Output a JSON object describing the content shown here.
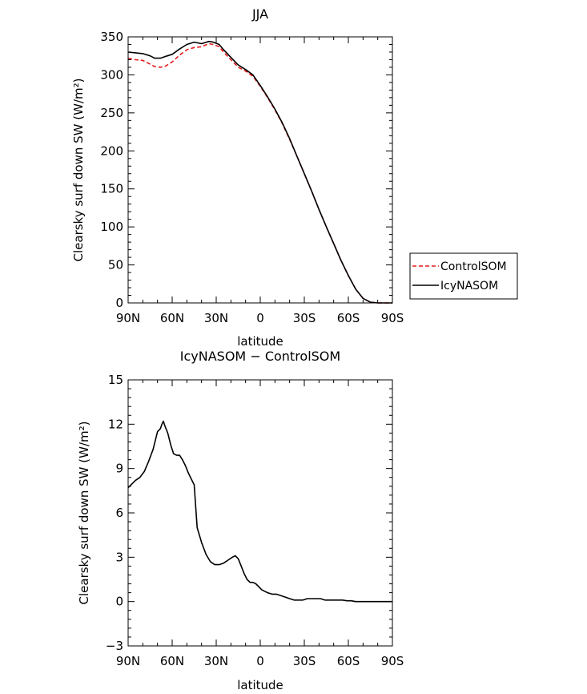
{
  "chart_data": [
    {
      "type": "line",
      "title": "JJA",
      "xlabel": "latitude",
      "ylabel": "Clearsky surf down SW (W/m²)",
      "xlim": [
        90,
        -90
      ],
      "ylim": [
        0,
        350
      ],
      "xticks": [
        {
          "value": 90,
          "label": "90N"
        },
        {
          "value": 60,
          "label": "60N"
        },
        {
          "value": 30,
          "label": "30N"
        },
        {
          "value": 0,
          "label": "0"
        },
        {
          "value": -30,
          "label": "30S"
        },
        {
          "value": -60,
          "label": "60S"
        },
        {
          "value": -90,
          "label": "90S"
        }
      ],
      "yticks": [
        0,
        50,
        100,
        150,
        200,
        250,
        300,
        350
      ],
      "legend": "right",
      "series": [
        {
          "name": "ControlSOM",
          "color": "#e41a1c",
          "dash": "dashed",
          "x": [
            90,
            85,
            80,
            75,
            72,
            68,
            65,
            60,
            55,
            50,
            45,
            40,
            35,
            32,
            28,
            25,
            20,
            15,
            10,
            5,
            0,
            -5,
            -10,
            -15,
            -20,
            -25,
            -30,
            -35,
            -40,
            -45,
            -50,
            -55,
            -60,
            -65,
            -70,
            -75,
            -80,
            -85,
            -90
          ],
          "y": [
            322,
            320,
            319,
            314,
            311,
            310,
            311,
            317,
            326,
            333,
            336,
            337,
            341,
            340,
            337,
            330,
            320,
            310,
            305,
            298,
            285,
            270,
            254,
            236,
            215,
            193,
            170,
            147,
            123,
            100,
            78,
            56,
            36,
            18,
            6,
            1,
            0,
            0,
            0
          ]
        },
        {
          "name": "IcyNASOM",
          "color": "#000000",
          "dash": "solid",
          "x": [
            90,
            85,
            80,
            75,
            72,
            68,
            65,
            60,
            55,
            50,
            45,
            40,
            35,
            32,
            28,
            25,
            20,
            15,
            10,
            5,
            0,
            -5,
            -10,
            -15,
            -20,
            -25,
            -30,
            -35,
            -40,
            -45,
            -50,
            -55,
            -60,
            -65,
            -70,
            -75,
            -80,
            -85,
            -90
          ],
          "y": [
            330,
            329,
            328,
            325,
            322,
            322,
            324,
            327,
            334,
            340,
            343,
            341,
            344,
            343,
            340,
            333,
            323,
            313,
            307,
            300,
            286,
            271,
            255,
            237,
            216,
            193,
            170,
            147,
            123,
            100,
            78,
            56,
            36,
            18,
            6,
            1,
            0,
            0,
            0
          ]
        }
      ]
    },
    {
      "type": "line",
      "title": "IcyNASOM − ControlSOM",
      "xlabel": "latitude",
      "ylabel": "Clearsky surf down SW (W/m²)",
      "xlim": [
        90,
        -90
      ],
      "ylim": [
        -3,
        15
      ],
      "xticks": [
        {
          "value": 90,
          "label": "90N"
        },
        {
          "value": 60,
          "label": "60N"
        },
        {
          "value": 30,
          "label": "30N"
        },
        {
          "value": 0,
          "label": "0"
        },
        {
          "value": -30,
          "label": "30S"
        },
        {
          "value": -60,
          "label": "60S"
        },
        {
          "value": -90,
          "label": "90S"
        }
      ],
      "yticks": [
        {
          "value": -3,
          "label": "−3"
        },
        {
          "value": 0,
          "label": "0"
        },
        {
          "value": 3,
          "label": "3"
        },
        {
          "value": 6,
          "label": "6"
        },
        {
          "value": 9,
          "label": "9"
        },
        {
          "value": 12,
          "label": "12"
        },
        {
          "value": 15,
          "label": "15"
        }
      ],
      "series": [
        {
          "color": "#000000",
          "dash": "solid",
          "x": [
            90,
            87,
            85,
            82,
            79,
            76,
            73,
            70,
            68,
            67,
            66,
            65,
            63,
            61,
            59,
            57,
            55,
            53,
            51,
            49,
            47,
            45,
            43,
            40,
            37,
            34,
            31,
            28,
            25,
            22,
            19,
            17,
            15,
            13,
            11,
            9,
            7,
            5,
            3,
            1,
            -1,
            -3,
            -5,
            -8,
            -11,
            -14,
            -17,
            -20,
            -23,
            -26,
            -29,
            -32,
            -35,
            -38,
            -41,
            -44,
            -47,
            -50,
            -53,
            -56,
            -59,
            -62,
            -65,
            -68,
            -71,
            -75,
            -80,
            -85,
            -90
          ],
          "y": [
            7.7,
            8.0,
            8.2,
            8.4,
            8.8,
            9.5,
            10.3,
            11.5,
            11.7,
            12.0,
            12.2,
            11.9,
            11.4,
            10.6,
            10.0,
            9.9,
            9.9,
            9.6,
            9.2,
            8.7,
            8.3,
            7.9,
            5.0,
            4.0,
            3.2,
            2.7,
            2.5,
            2.5,
            2.6,
            2.8,
            3.0,
            3.1,
            2.9,
            2.4,
            1.9,
            1.5,
            1.3,
            1.3,
            1.2,
            1.0,
            0.8,
            0.7,
            0.6,
            0.5,
            0.5,
            0.4,
            0.3,
            0.2,
            0.1,
            0.1,
            0.1,
            0.2,
            0.2,
            0.2,
            0.2,
            0.1,
            0.1,
            0.1,
            0.1,
            0.1,
            0.05,
            0.05,
            0,
            0,
            0,
            0,
            0,
            0,
            0
          ]
        }
      ]
    }
  ]
}
